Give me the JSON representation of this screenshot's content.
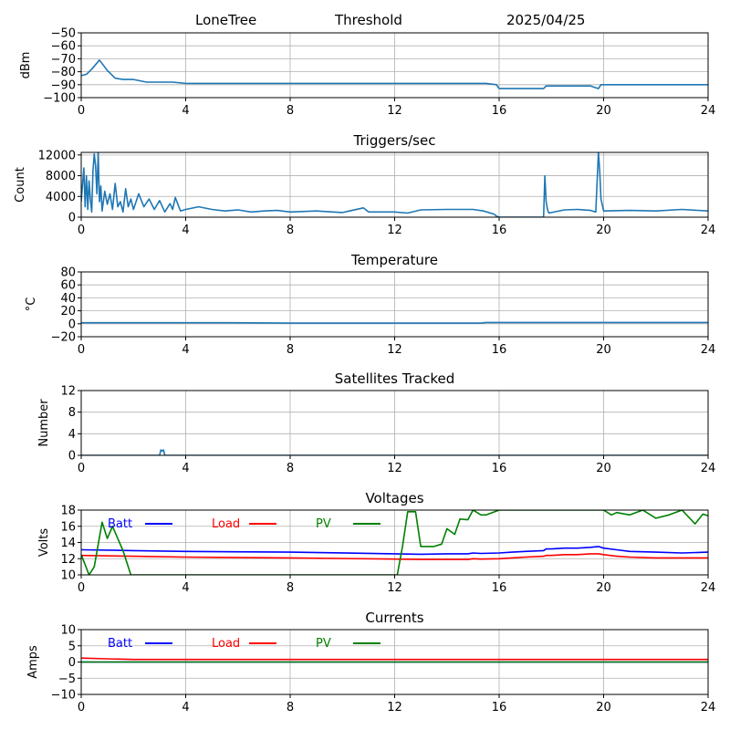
{
  "header": {
    "station": "LoneTree",
    "mode": "Threshold",
    "date": "2025/04/25"
  },
  "colors": {
    "default": "#1f77b4",
    "batt": "#0000ff",
    "load": "#ff0000",
    "pv": "#008000",
    "grid": "#b0b0b0"
  },
  "chart_data": [
    {
      "id": "signal",
      "type": "line",
      "title": "",
      "xlabel": "",
      "ylabel": "dBm",
      "xlim": [
        0,
        24
      ],
      "ylim": [
        -100,
        -50
      ],
      "xticks": [
        0,
        4,
        8,
        12,
        16,
        20,
        24
      ],
      "yticks": [
        -100,
        -90,
        -80,
        -70,
        -60,
        -50
      ],
      "grid": true,
      "series": [
        {
          "color": "#1f77b4",
          "x": [
            0,
            0.2,
            0.4,
            0.7,
            1.0,
            1.3,
            1.6,
            2.0,
            2.5,
            3.0,
            3.5,
            4.0,
            6.0,
            8.0,
            10.0,
            12.0,
            14.0,
            15.5,
            15.9,
            16.0,
            17.7,
            17.8,
            18.5,
            19.0,
            19.5,
            19.8,
            19.9,
            20.0,
            22.0,
            24.0
          ],
          "y": [
            -83,
            -82,
            -78,
            -71,
            -79,
            -85,
            -86,
            -86,
            -88,
            -88,
            -88,
            -89,
            -89,
            -89,
            -89,
            -89,
            -89,
            -89,
            -90,
            -93,
            -93,
            -91,
            -91,
            -91,
            -91,
            -93,
            -90,
            -90,
            -90,
            -90
          ]
        }
      ]
    },
    {
      "id": "triggers",
      "type": "line",
      "title": "Triggers/sec",
      "xlabel": "",
      "ylabel": "Count",
      "xlim": [
        0,
        24
      ],
      "ylim": [
        0,
        12500
      ],
      "xticks": [
        0,
        4,
        8,
        12,
        16,
        20,
        24
      ],
      "yticks": [
        0,
        4000,
        8000,
        12000
      ],
      "grid": true,
      "series": [
        {
          "color": "#1f77b4",
          "x": [
            0,
            0.1,
            0.15,
            0.2,
            0.25,
            0.3,
            0.35,
            0.4,
            0.45,
            0.5,
            0.55,
            0.6,
            0.65,
            0.7,
            0.75,
            0.8,
            0.9,
            1.0,
            1.1,
            1.2,
            1.3,
            1.4,
            1.5,
            1.6,
            1.7,
            1.8,
            1.9,
            2.0,
            2.2,
            2.4,
            2.6,
            2.8,
            3.0,
            3.2,
            3.4,
            3.5,
            3.6,
            3.8,
            4.0,
            4.5,
            5.0,
            5.5,
            6.0,
            6.5,
            7.0,
            7.5,
            8.0,
            9.0,
            10.0,
            10.8,
            11.0,
            12.0,
            12.5,
            13.0,
            14.0,
            15.0,
            15.4,
            15.8,
            15.9,
            16.0,
            17.0,
            17.7,
            17.75,
            17.8,
            17.85,
            17.9,
            18.5,
            19.0,
            19.5,
            19.7,
            19.8,
            19.85,
            19.9,
            20.0,
            21.0,
            22.0,
            23.0,
            24.0
          ],
          "y": [
            3000,
            9500,
            2000,
            8000,
            1500,
            7000,
            3500,
            1000,
            9000,
            12200,
            10000,
            4500,
            12500,
            3000,
            6000,
            1200,
            5000,
            2500,
            4500,
            1500,
            6500,
            2000,
            3000,
            1000,
            5500,
            2000,
            3500,
            1500,
            4500,
            2000,
            3500,
            1500,
            3200,
            1000,
            2600,
            1500,
            3800,
            1200,
            1500,
            2000,
            1500,
            1200,
            1400,
            1000,
            1200,
            1300,
            1000,
            1200,
            900,
            1800,
            1000,
            1000,
            800,
            1400,
            1500,
            1500,
            1200,
            600,
            200,
            0,
            0,
            0,
            8000,
            3000,
            1500,
            800,
            1400,
            1500,
            1300,
            1000,
            12500,
            9000,
            3500,
            1200,
            1300,
            1200,
            1500,
            1200
          ]
        }
      ]
    },
    {
      "id": "temperature",
      "type": "line",
      "title": "Temperature",
      "xlabel": "",
      "ylabel": "°C",
      "xlim": [
        0,
        24
      ],
      "ylim": [
        -20,
        80
      ],
      "xticks": [
        0,
        4,
        8,
        12,
        16,
        20,
        24
      ],
      "yticks": [
        -20,
        0,
        20,
        40,
        60,
        80
      ],
      "grid": true,
      "series": [
        {
          "color": "#1f77b4",
          "x": [
            0,
            4,
            5.6,
            8,
            12,
            15.3,
            15.5,
            20,
            24
          ],
          "y": [
            1.5,
            1.5,
            1.5,
            1,
            1,
            1,
            2,
            2,
            2
          ]
        }
      ]
    },
    {
      "id": "satellites",
      "type": "line",
      "title": "Satellites Tracked",
      "xlabel": "",
      "ylabel": "Number",
      "xlim": [
        0,
        24
      ],
      "ylim": [
        0,
        12
      ],
      "xticks": [
        0,
        4,
        8,
        12,
        16,
        20,
        24
      ],
      "yticks": [
        0,
        4,
        8,
        12
      ],
      "grid": true,
      "series": [
        {
          "color": "#1f77b4",
          "x": [
            0,
            3.0,
            3.05,
            3.1,
            3.15,
            3.2,
            24
          ],
          "y": [
            0,
            0,
            1,
            0.8,
            1,
            0,
            0
          ]
        }
      ]
    },
    {
      "id": "voltages",
      "type": "line",
      "title": "Voltages",
      "xlabel": "",
      "ylabel": "Volts",
      "xlim": [
        0,
        24
      ],
      "ylim": [
        10,
        18
      ],
      "xticks": [
        0,
        4,
        8,
        12,
        16,
        20,
        24
      ],
      "yticks": [
        10,
        12,
        14,
        16,
        18
      ],
      "grid": true,
      "legend": "top-left",
      "series": [
        {
          "name": "Batt",
          "color": "#0000ff",
          "x": [
            0,
            2,
            4,
            8,
            12,
            13,
            14,
            14.8,
            15,
            15.3,
            16,
            16.5,
            17,
            17.7,
            17.8,
            18,
            18.5,
            19,
            19.5,
            19.8,
            20,
            20.5,
            21,
            22,
            23,
            24
          ],
          "y": [
            13.1,
            13.0,
            12.9,
            12.8,
            12.6,
            12.55,
            12.6,
            12.6,
            12.7,
            12.65,
            12.7,
            12.8,
            12.9,
            13.0,
            13.2,
            13.2,
            13.3,
            13.3,
            13.4,
            13.5,
            13.3,
            13.1,
            12.9,
            12.8,
            12.7,
            12.8
          ]
        },
        {
          "name": "Load",
          "color": "#ff0000",
          "x": [
            0,
            2,
            4,
            8,
            12,
            13,
            14,
            14.8,
            15,
            15.3,
            16,
            16.5,
            17,
            17.7,
            17.8,
            18,
            18.5,
            19,
            19.5,
            19.8,
            20,
            20.5,
            21,
            22,
            23,
            24
          ],
          "y": [
            12.4,
            12.3,
            12.2,
            12.1,
            11.95,
            11.9,
            11.9,
            11.9,
            12.0,
            11.95,
            12.0,
            12.1,
            12.2,
            12.3,
            12.4,
            12.4,
            12.5,
            12.5,
            12.6,
            12.6,
            12.5,
            12.3,
            12.2,
            12.1,
            12.1,
            12.1
          ]
        },
        {
          "name": "PV",
          "color": "#008000",
          "x": [
            0,
            0.3,
            0.5,
            0.8,
            1.0,
            1.2,
            1.6,
            1.9,
            12.1,
            12.3,
            12.5,
            12.8,
            13.0,
            13.5,
            13.8,
            14.0,
            14.3,
            14.5,
            14.8,
            15.0,
            15.3,
            15.5,
            16.0,
            20.0,
            20.3,
            20.5,
            21.0,
            21.5,
            22.0,
            22.5,
            23.0,
            23.5,
            23.8,
            24.0
          ],
          "y": [
            12.5,
            10.0,
            11.0,
            16.5,
            14.5,
            16.0,
            13.0,
            10.0,
            10.0,
            13.5,
            17.8,
            17.8,
            13.5,
            13.5,
            13.8,
            15.7,
            15.0,
            16.9,
            16.8,
            18.0,
            17.4,
            17.4,
            18.0,
            18.0,
            17.4,
            17.7,
            17.4,
            18.0,
            17.0,
            17.4,
            18.0,
            16.3,
            17.5,
            17.3
          ]
        }
      ]
    },
    {
      "id": "currents",
      "type": "line",
      "title": "Currents",
      "xlabel": "",
      "ylabel": "Amps",
      "xlim": [
        0,
        24
      ],
      "ylim": [
        -10,
        10
      ],
      "xticks": [
        0,
        4,
        8,
        12,
        16,
        20,
        24
      ],
      "yticks": [
        -10,
        -5,
        0,
        5,
        10
      ],
      "grid": true,
      "legend": "top-left",
      "series": [
        {
          "name": "Batt",
          "color": "#0000ff",
          "x": [
            0,
            24
          ],
          "y": [
            0,
            0
          ]
        },
        {
          "name": "Load",
          "color": "#ff0000",
          "x": [
            0,
            1,
            2,
            4,
            8,
            12,
            16,
            20,
            24
          ],
          "y": [
            1.2,
            1.0,
            0.8,
            0.8,
            0.8,
            0.8,
            0.8,
            0.8,
            0.8
          ]
        },
        {
          "name": "PV",
          "color": "#008000",
          "x": [
            0,
            24
          ],
          "y": [
            0,
            0
          ]
        }
      ]
    }
  ]
}
